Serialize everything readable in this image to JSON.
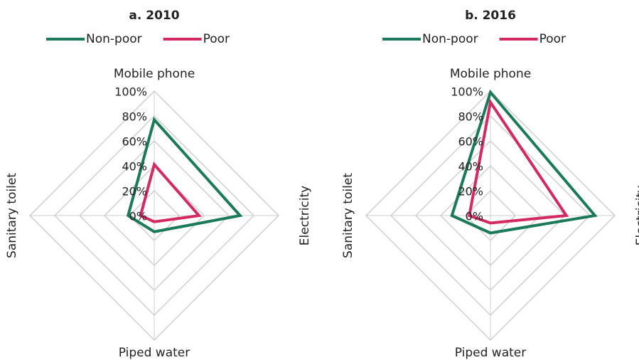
{
  "chart_data": [
    {
      "type": "radar",
      "title": "a. 2010",
      "categories": [
        "Mobile phone",
        "Electricity",
        "Piped water",
        "Sanitary toilet"
      ],
      "series": [
        {
          "name": "Non-poor",
          "color": "#1b7a5a",
          "values": [
            77,
            69,
            13,
            21
          ]
        },
        {
          "name": "Poor",
          "color": "#d42a62",
          "values": [
            41,
            36,
            5,
            11
          ]
        }
      ],
      "rlim": [
        0,
        100
      ],
      "rticks": [
        {
          "value": 0,
          "label": "0%"
        },
        {
          "value": 20,
          "label": "20%"
        },
        {
          "value": 40,
          "label": "40%"
        },
        {
          "value": 60,
          "label": "60%"
        },
        {
          "value": 80,
          "label": "80%"
        },
        {
          "value": 100,
          "label": "100%"
        }
      ],
      "grid": true,
      "legend": "top"
    },
    {
      "type": "radar",
      "title": "b. 2016",
      "categories": [
        "Mobile phone",
        "Electricity",
        "Piped water",
        "Sanitary toilet"
      ],
      "series": [
        {
          "name": "Non-poor",
          "color": "#1b7a5a",
          "values": [
            99,
            84,
            14,
            31
          ]
        },
        {
          "name": "Poor",
          "color": "#d42a62",
          "values": [
            91,
            61,
            6,
            17
          ]
        }
      ],
      "rlim": [
        0,
        100
      ],
      "rticks": [
        {
          "value": 0,
          "label": "0%"
        },
        {
          "value": 20,
          "label": "20%"
        },
        {
          "value": 40,
          "label": "40%"
        },
        {
          "value": 60,
          "label": "60%"
        },
        {
          "value": 80,
          "label": "80%"
        },
        {
          "value": 100,
          "label": "100%"
        }
      ],
      "grid": true,
      "legend": "top"
    }
  ]
}
